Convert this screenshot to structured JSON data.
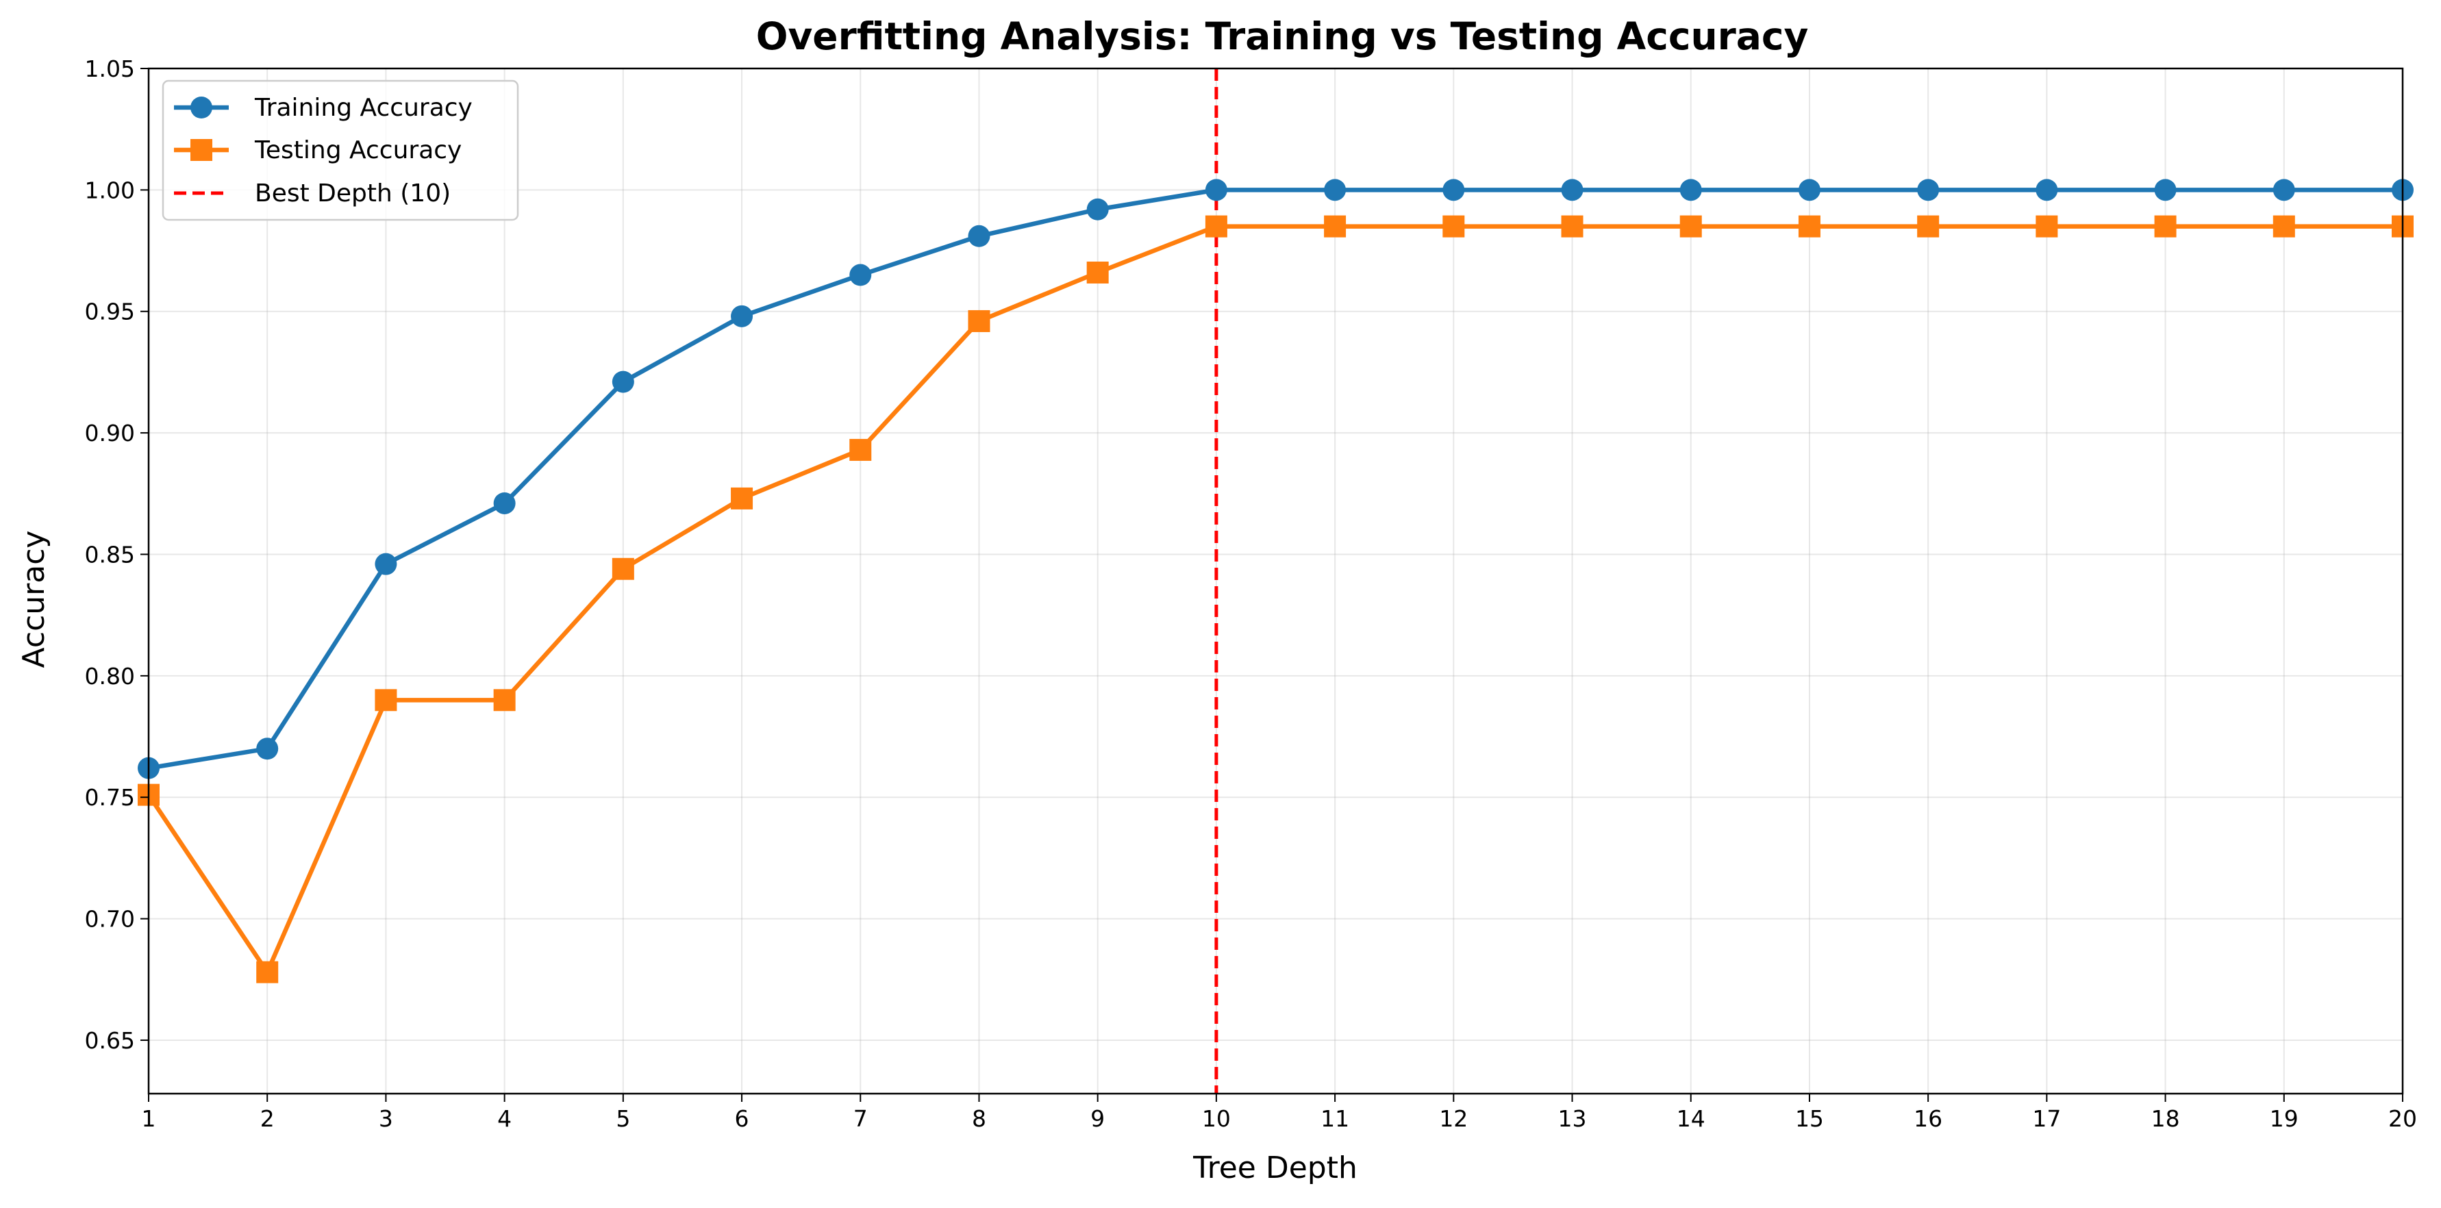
{
  "chart_data": {
    "type": "line",
    "title": "Overfitting Analysis: Training vs Testing Accuracy",
    "xlabel": "Tree Depth",
    "ylabel": "Accuracy",
    "xlim": [
      1,
      20
    ],
    "ylim": [
      0.628,
      1.05
    ],
    "x": [
      1,
      2,
      3,
      4,
      5,
      6,
      7,
      8,
      9,
      10,
      11,
      12,
      13,
      14,
      15,
      16,
      17,
      18,
      19,
      20
    ],
    "x_ticks": [
      "1",
      "2",
      "3",
      "4",
      "5",
      "6",
      "7",
      "8",
      "9",
      "10",
      "11",
      "12",
      "13",
      "14",
      "15",
      "16",
      "17",
      "18",
      "19",
      "20"
    ],
    "y_ticks": [
      {
        "value": 0.65,
        "label": "0.65"
      },
      {
        "value": 0.7,
        "label": "0.70"
      },
      {
        "value": 0.75,
        "label": "0.75"
      },
      {
        "value": 0.8,
        "label": "0.80"
      },
      {
        "value": 0.85,
        "label": "0.85"
      },
      {
        "value": 0.9,
        "label": "0.90"
      },
      {
        "value": 0.95,
        "label": "0.95"
      },
      {
        "value": 1.0,
        "label": "1.00"
      },
      {
        "value": 1.05,
        "label": "1.05"
      }
    ],
    "grid": true,
    "legend_position": "top-left",
    "series": [
      {
        "name": "Training Accuracy",
        "color": "#1f77b4",
        "marker": "circle",
        "values": [
          0.762,
          0.77,
          0.846,
          0.871,
          0.921,
          0.948,
          0.965,
          0.981,
          0.992,
          1.0,
          1.0,
          1.0,
          1.0,
          1.0,
          1.0,
          1.0,
          1.0,
          1.0,
          1.0,
          1.0
        ]
      },
      {
        "name": "Testing Accuracy",
        "color": "#ff7f0e",
        "marker": "square",
        "values": [
          0.751,
          0.678,
          0.79,
          0.79,
          0.844,
          0.873,
          0.893,
          0.946,
          0.966,
          0.985,
          0.985,
          0.985,
          0.985,
          0.985,
          0.985,
          0.985,
          0.985,
          0.985,
          0.985,
          0.985
        ]
      }
    ],
    "reference_line": {
      "name": "Best Depth (10)",
      "x": 10,
      "color": "#ff0000",
      "style": "dashed"
    }
  }
}
